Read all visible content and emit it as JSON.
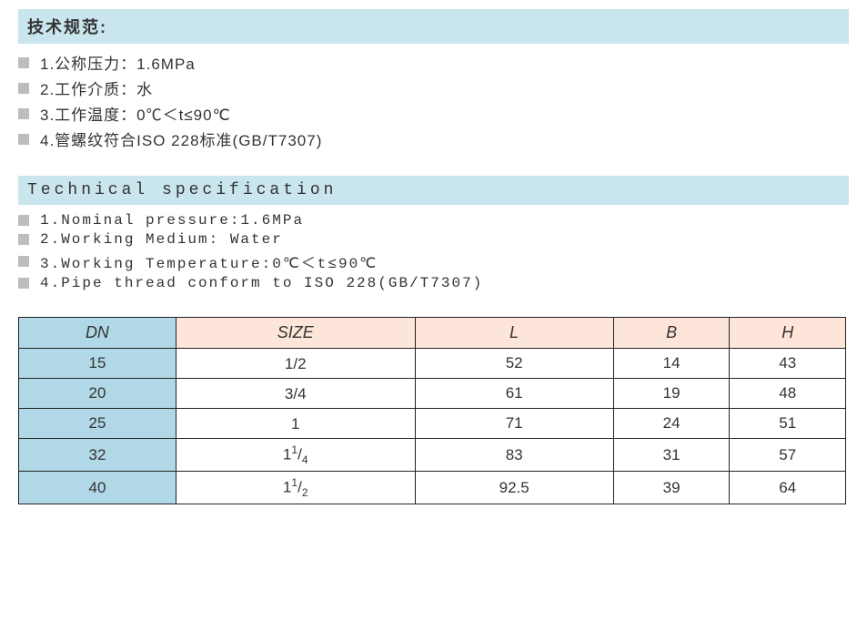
{
  "section_cn": {
    "title": "技术规范:",
    "items": [
      "1.公称压力：1.6MPa",
      "2.工作介质：水",
      "3.工作温度：0℃＜t≤90℃",
      "4.管螺纹符合ISO 228标准(GB/T7307)"
    ]
  },
  "section_en": {
    "title": "Technical specification",
    "items": [
      "1.Nominal pressure:1.6MPa",
      "2.Working Medium: Water",
      "3.Working Temperature:0℃＜t≤90℃",
      "4.Pipe thread conform to ISO 228(GB/T7307)"
    ]
  },
  "table": {
    "columns": [
      "DN",
      "SIZE",
      "L",
      "B",
      "H"
    ],
    "col_widths_pct": [
      20,
      20,
      20,
      20,
      20
    ],
    "header_bg_first": "#b0d8e6",
    "header_bg_rest": "#fde6d9",
    "first_col_bg": "#b0d8e6",
    "cell_bg": "#ffffff",
    "border_color": "#222222",
    "rows": [
      {
        "dn": "15",
        "size_plain": "1/2",
        "L": "52",
        "B": "14",
        "H": "43"
      },
      {
        "dn": "20",
        "size_plain": "3/4",
        "L": "61",
        "B": "19",
        "H": "48"
      },
      {
        "dn": "25",
        "size_plain": "1",
        "L": "71",
        "B": "24",
        "H": "51"
      },
      {
        "dn": "32",
        "size_mixed": {
          "whole": "1",
          "num": "1",
          "den": "4"
        },
        "L": "83",
        "B": "31",
        "H": "57"
      },
      {
        "dn": "40",
        "size_mixed": {
          "whole": "1",
          "num": "1",
          "den": "2"
        },
        "L": "92.5",
        "B": "39",
        "H": "64"
      }
    ]
  },
  "styling": {
    "header_bar_bg": "#c9e5ee",
    "bullet_color": "#bdbdbd",
    "text_color": "#333333",
    "background": "#ffffff"
  }
}
